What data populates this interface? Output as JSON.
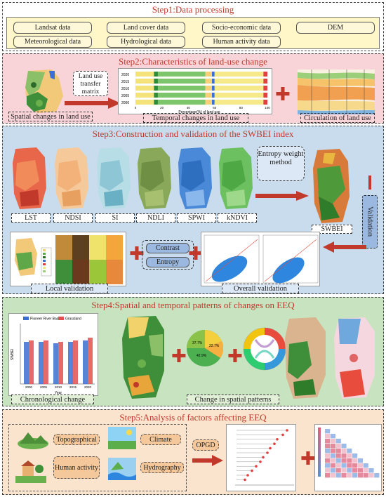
{
  "colors": {
    "accent_red": "#c0392b",
    "step1_bg": "#fff7c7",
    "step2_bg": "#f8d3d8",
    "step3_bg": "#c9dcee",
    "step4_bg": "#c7e3bf",
    "step5_bg": "#fbe4cd"
  },
  "step1": {
    "title": "Step1:Data processing",
    "data_items": [
      "Landsat data",
      "Land cover data",
      "Socio-economic data",
      "DEM",
      "Meteorological data",
      "Hydrological data",
      "Human activity data"
    ]
  },
  "step2": {
    "title": "Step2:Characteristics of land-use change",
    "transfer_label": "Land use transfer matrix",
    "bar_years": [
      "2020",
      "2015",
      "2010",
      "2005",
      "2000"
    ],
    "bar_axis_ticks": [
      "0",
      "20",
      "40",
      "60",
      "80",
      "100"
    ],
    "bar_xlabel": "Percentage(%) of land use",
    "captions": [
      "Spatial changes in land use",
      "Temporal changes in land use",
      "Circulation of land use"
    ]
  },
  "step3": {
    "title": "Step3:Construction and validation of the SWBEI index",
    "indices": [
      "LST",
      "NDSI",
      "SI",
      "NDLI",
      "SPWI",
      "kNDVI"
    ],
    "method_label": "Entropy weight method",
    "result_label": "SWBEI",
    "validation_label": "Validation",
    "contrast_label": "Contrast",
    "entropy_label": "Entropy",
    "captions": [
      "Local validation",
      "Overall validation"
    ]
  },
  "step4": {
    "title": "Step4:Spatial and temporal patterns of changes on EEQ",
    "bar_legend": [
      "Pioneer River Basin",
      "Grassland"
    ],
    "bar_years": [
      "2000",
      "2005",
      "2010",
      "2015",
      "2020"
    ],
    "bar_xlabel": "Year",
    "bar_ylabel": "SWBEI",
    "pie_labels": [
      "37.7%",
      "22.7%",
      "42.9%"
    ],
    "captions": [
      "Chronological change",
      "Change in spatial patterns"
    ]
  },
  "step5": {
    "title": "Step5:Analysis of factors affecting EEQ",
    "factors": [
      "Topographical",
      "Climate",
      "Human activity",
      "Hydrography"
    ],
    "method_label": "OPGD"
  }
}
